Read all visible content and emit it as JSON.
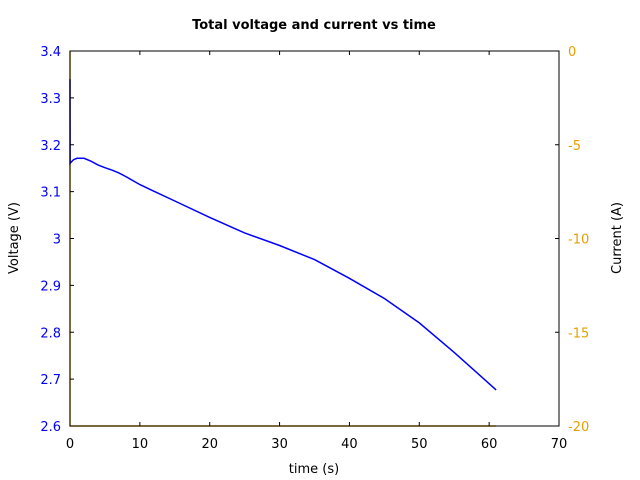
{
  "chart_data": {
    "type": "line",
    "title": "Total voltage and current vs time",
    "xlabel": "time (s)",
    "ylabel": "Voltage (V)",
    "y2label": "Current (A)",
    "xlim": [
      0,
      70
    ],
    "ylim": [
      2.6,
      3.4
    ],
    "y2lim": [
      -20,
      0
    ],
    "x_ticks": [
      "0",
      "10",
      "20",
      "30",
      "40",
      "50",
      "60",
      "70"
    ],
    "y_ticks": [
      "2.6",
      "2.7",
      "2.8",
      "2.9",
      "3",
      "3.1",
      "3.2",
      "3.3",
      "3.4"
    ],
    "y2_ticks": [
      "-20",
      "-15",
      "-10",
      "-5",
      "0"
    ],
    "grid": false,
    "legend": null,
    "series": [
      {
        "name": "Voltage",
        "axis": "left",
        "color": "#0000ff",
        "x": [
          0,
          0.02,
          0.1,
          0.5,
          1,
          2,
          3,
          4,
          5,
          6,
          7,
          8,
          10,
          12,
          15,
          20,
          25,
          30,
          35,
          40,
          45,
          50,
          55,
          58,
          61
        ],
        "values": [
          3.34,
          3.16,
          3.162,
          3.168,
          3.171,
          3.171,
          3.165,
          3.157,
          3.151,
          3.146,
          3.14,
          3.132,
          3.115,
          3.101,
          3.08,
          3.045,
          3.012,
          2.985,
          2.955,
          2.915,
          2.872,
          2.82,
          2.757,
          2.717,
          2.677
        ]
      },
      {
        "name": "Current",
        "axis": "right",
        "color": "#e69f00",
        "x": [
          0,
          0,
          61
        ],
        "values": [
          0,
          -20,
          -20
        ]
      }
    ]
  }
}
